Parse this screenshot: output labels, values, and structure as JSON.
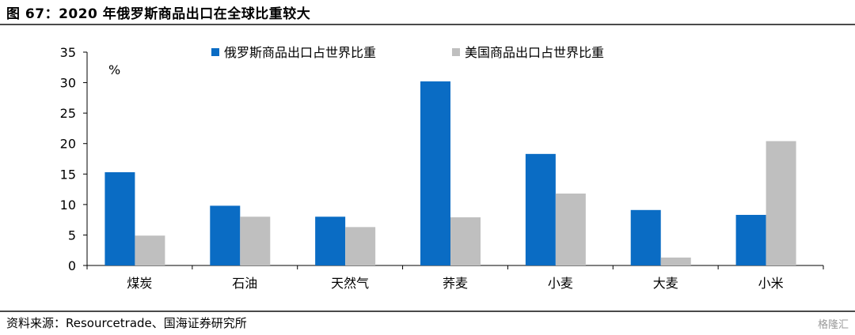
{
  "header": {
    "title": "图 67：2020 年俄罗斯商品出口在全球比重较大"
  },
  "footer": {
    "source": "资料来源：Resourcetrade、国海证券研究所",
    "watermark": "格隆汇"
  },
  "chart_data": {
    "type": "bar",
    "unit_label": "%",
    "categories": [
      "煤炭",
      "石油",
      "天然气",
      "荞麦",
      "小麦",
      "大麦",
      "小米"
    ],
    "series": [
      {
        "name": "俄罗斯商品出口占世界比重",
        "color": "#0a6cc4",
        "values": [
          15.3,
          9.8,
          8.0,
          30.2,
          18.3,
          9.1,
          8.3
        ]
      },
      {
        "name": "美国商品出口占世界比重",
        "color": "#bfbfbf",
        "values": [
          4.9,
          8.0,
          6.3,
          7.9,
          11.8,
          1.3,
          20.4
        ]
      }
    ],
    "ylim": [
      0,
      35
    ],
    "yticks": [
      0,
      5,
      10,
      15,
      20,
      25,
      30,
      35
    ],
    "legend_position": "top-center",
    "grid": false
  }
}
